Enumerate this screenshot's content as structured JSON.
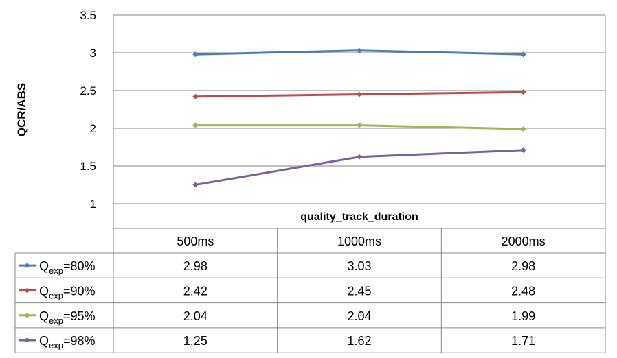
{
  "chart_data": {
    "type": "line",
    "ylabel": "QCR/ABS",
    "xlabel": "quality_track_duration",
    "categories": [
      "500ms",
      "1000ms",
      "2000ms"
    ],
    "ylim": [
      1,
      3.5
    ],
    "yticks": [
      "1",
      "1.5",
      "2",
      "2.5",
      "3",
      "3.5"
    ],
    "grid": true,
    "legend_placement": "left of data table",
    "series": [
      {
        "name": "Qexp=80%",
        "label_main": "Q",
        "label_sub": "exp",
        "label_tail": "=80%",
        "color": "#4a7ebb",
        "values": [
          2.98,
          3.03,
          2.98
        ],
        "display": [
          "2.98",
          "3.03",
          "2.98"
        ]
      },
      {
        "name": "Qexp=90%",
        "label_main": "Q",
        "label_sub": "exp",
        "label_tail": "=90%",
        "color": "#be4b48",
        "values": [
          2.42,
          2.45,
          2.48
        ],
        "display": [
          "2.42",
          "2.45",
          "2.48"
        ]
      },
      {
        "name": "Qexp=95%",
        "label_main": "Q",
        "label_sub": "exp",
        "label_tail": "=95%",
        "color": "#98b954",
        "values": [
          2.04,
          2.04,
          1.99
        ],
        "display": [
          "2.04",
          "2.04",
          "1.99"
        ]
      },
      {
        "name": "Qexp=98%",
        "label_main": "Q",
        "label_sub": "exp",
        "label_tail": "=98%",
        "color": "#7d60a0",
        "values": [
          1.25,
          1.62,
          1.71
        ],
        "display": [
          "1.25",
          "1.62",
          "1.71"
        ]
      }
    ]
  }
}
